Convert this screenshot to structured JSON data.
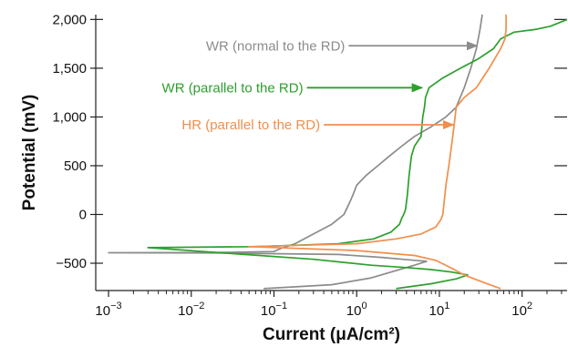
{
  "chart_data": {
    "type": "line",
    "xscale": "log",
    "xlabel": "Current (μA/cm²)",
    "ylabel": "Potential (mV)",
    "xlim": [
      0.0007,
      350
    ],
    "ylim": [
      -780,
      2050
    ],
    "x_ticks": [
      {
        "value": 0.001,
        "base": "10",
        "exp": "−3"
      },
      {
        "value": 0.01,
        "base": "10",
        "exp": "−2"
      },
      {
        "value": 0.1,
        "base": "10",
        "exp": "−1"
      },
      {
        "value": 1,
        "base": "10",
        "exp": "0"
      },
      {
        "value": 10,
        "base": "10",
        "exp": "1"
      },
      {
        "value": 100,
        "base": "10",
        "exp": "2"
      }
    ],
    "y_ticks": [
      {
        "value": -500,
        "label": "−500"
      },
      {
        "value": 0,
        "label": "0"
      },
      {
        "value": 500,
        "label": "500"
      },
      {
        "value": 1000,
        "label": "1,000"
      },
      {
        "value": 1500,
        "label": "1,500"
      },
      {
        "value": 2000,
        "label": "2,000"
      }
    ],
    "grid": false,
    "series": [
      {
        "name": "WR (normal to the RD)",
        "color": "#8c8c8c",
        "points": [
          [
            0.075,
            -760
          ],
          [
            0.5,
            -720
          ],
          [
            1.5,
            -650
          ],
          [
            3,
            -575
          ],
          [
            5,
            -520
          ],
          [
            7,
            -480
          ],
          [
            5,
            -470
          ],
          [
            2,
            -440
          ],
          [
            0.6,
            -410
          ],
          [
            0.02,
            -395
          ],
          [
            0.001,
            -392
          ],
          [
            0.02,
            -390
          ],
          [
            0.1,
            -380
          ],
          [
            0.12,
            -350
          ],
          [
            0.18,
            -300
          ],
          [
            0.3,
            -200
          ],
          [
            0.5,
            -100
          ],
          [
            0.7,
            0
          ],
          [
            0.8,
            100
          ],
          [
            0.9,
            200
          ],
          [
            1,
            300
          ],
          [
            1.3,
            400
          ],
          [
            1.8,
            500
          ],
          [
            2.5,
            600
          ],
          [
            3.5,
            700
          ],
          [
            5,
            800
          ],
          [
            8,
            900
          ],
          [
            12,
            1000
          ],
          [
            16,
            1100
          ],
          [
            20,
            1300
          ],
          [
            24,
            1500
          ],
          [
            28,
            1700
          ],
          [
            31,
            1900
          ],
          [
            33,
            2050
          ]
        ]
      },
      {
        "name": "WR (parallel to the RD)",
        "color": "#2ca02c",
        "points": [
          [
            3,
            -760
          ],
          [
            8,
            -710
          ],
          [
            16,
            -660
          ],
          [
            22,
            -620
          ],
          [
            14,
            -590
          ],
          [
            8,
            -565
          ],
          [
            4,
            -545
          ],
          [
            1.5,
            -520
          ],
          [
            0.3,
            -460
          ],
          [
            0.003,
            -340
          ],
          [
            0.06,
            -330
          ],
          [
            0.6,
            -300
          ],
          [
            1.6,
            -250
          ],
          [
            2.6,
            -180
          ],
          [
            3.3,
            -100
          ],
          [
            3.5,
            -40
          ],
          [
            3.7,
            0
          ],
          [
            3.9,
            50
          ],
          [
            4.1,
            200
          ],
          [
            4.3,
            400
          ],
          [
            4.6,
            600
          ],
          [
            5,
            700
          ],
          [
            6,
            800
          ],
          [
            6.3,
            1000
          ],
          [
            6.6,
            1100
          ],
          [
            6.8,
            1200
          ],
          [
            7.5,
            1300
          ],
          [
            11,
            1400
          ],
          [
            18,
            1500
          ],
          [
            30,
            1600
          ],
          [
            45,
            1700
          ],
          [
            55,
            1800
          ],
          [
            80,
            1870
          ],
          [
            150,
            1900
          ],
          [
            220,
            1930
          ],
          [
            350,
            2000
          ]
        ]
      },
      {
        "name": "HR (parallel to the RD)",
        "color": "#f28e4b",
        "points": [
          [
            55,
            -760
          ],
          [
            35,
            -700
          ],
          [
            20,
            -620
          ],
          [
            14,
            -550
          ],
          [
            9,
            -470
          ],
          [
            5,
            -420
          ],
          [
            1,
            -370
          ],
          [
            0.05,
            -330
          ],
          [
            1,
            -300
          ],
          [
            3,
            -250
          ],
          [
            6,
            -200
          ],
          [
            9,
            -130
          ],
          [
            10.5,
            -50
          ],
          [
            11,
            0
          ],
          [
            11.5,
            150
          ],
          [
            12,
            300
          ],
          [
            13,
            500
          ],
          [
            14,
            700
          ],
          [
            15,
            900
          ],
          [
            16,
            1100
          ],
          [
            20,
            1200
          ],
          [
            28,
            1300
          ],
          [
            40,
            1500
          ],
          [
            55,
            1700
          ],
          [
            62,
            1800
          ],
          [
            64,
            1900
          ],
          [
            64,
            2050
          ]
        ]
      }
    ],
    "annotations": [
      {
        "text": "WR (normal to the RD)",
        "series": 0,
        "arrow_to": [
          30,
          1730
        ],
        "text_at": [
          0.8,
          1730
        ]
      },
      {
        "text": "WR (parallel to the RD)",
        "series": 1,
        "arrow_to": [
          6.5,
          1300
        ],
        "text_at": [
          0.25,
          1300
        ]
      },
      {
        "text": "HR (parallel to the RD)",
        "series": 2,
        "arrow_to": [
          15.5,
          920
        ],
        "text_at": [
          0.4,
          920
        ]
      }
    ]
  }
}
